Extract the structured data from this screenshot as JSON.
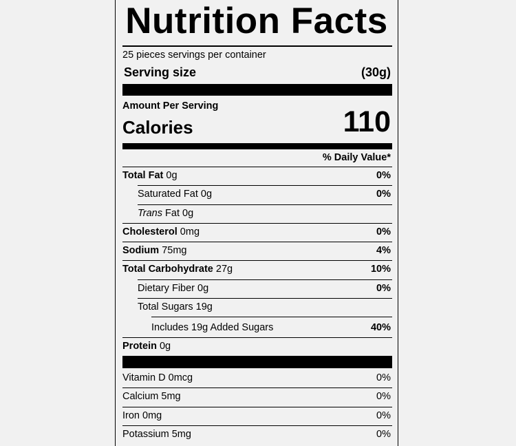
{
  "title": "Nutrition Facts",
  "servings_per_container": "25 pieces servings per container",
  "serving_size": {
    "label": "Serving size",
    "value": "(30g)"
  },
  "amount_per_serving": "Amount Per Serving",
  "calories": {
    "label": "Calories",
    "value": "110"
  },
  "daily_value_header": "% Daily Value*",
  "nutrients": [
    {
      "name": "Total Fat",
      "amount": "0g",
      "dv": "0%",
      "bold": true,
      "indent": 0
    },
    {
      "name": "Saturated Fat",
      "amount": "0g",
      "dv": "0%",
      "bold": false,
      "indent": 1
    },
    {
      "name": "Trans",
      "name_suffix": " Fat",
      "amount": "0g",
      "dv": "",
      "bold": false,
      "indent": 1,
      "italic": true
    },
    {
      "name": "Cholesterol",
      "amount": "0mg",
      "dv": "0%",
      "bold": true,
      "indent": 0
    },
    {
      "name": "Sodium",
      "amount": "75mg",
      "dv": "4%",
      "bold": true,
      "indent": 0
    },
    {
      "name": "Total Carbohydrate",
      "amount": "27g",
      "dv": "10%",
      "bold": true,
      "indent": 0
    },
    {
      "name": "Dietary Fiber",
      "amount": "0g",
      "dv": "0%",
      "bold": false,
      "indent": 1
    },
    {
      "name": "Total Sugars",
      "amount": "19g",
      "dv": "",
      "bold": false,
      "indent": 1
    },
    {
      "name": "Includes 19g Added Sugars",
      "amount": "",
      "dv": "40%",
      "bold": false,
      "indent": 2
    },
    {
      "name": "Protein",
      "amount": "0g",
      "dv": "",
      "bold": true,
      "indent": 0
    }
  ],
  "vitamins": [
    {
      "name": "Vitamin D",
      "amount": "0mcg",
      "dv": "0%"
    },
    {
      "name": "Calcium",
      "amount": "5mg",
      "dv": "0%"
    },
    {
      "name": "Iron",
      "amount": "0mg",
      "dv": "0%"
    },
    {
      "name": "Potassium",
      "amount": "5mg",
      "dv": "0%"
    }
  ]
}
